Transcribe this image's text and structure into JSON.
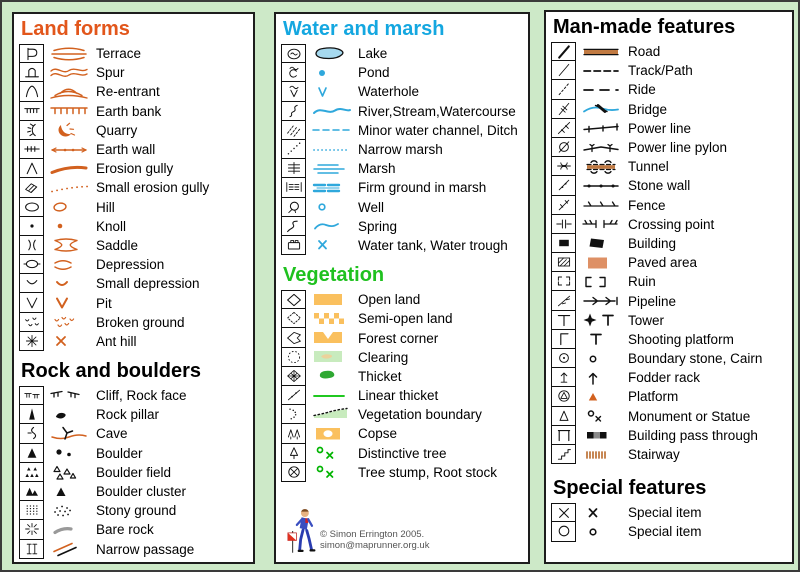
{
  "footer": {
    "copyright": "© Simon Errington 2005. simon@maprunner.org.uk"
  },
  "colors": {
    "page_bg": "#cde9c8",
    "panel_border": "#1d1d1d",
    "ink": "#111111",
    "heading_land": "#e2561b",
    "heading_water": "#14a7e0",
    "heading_veg": "#1fc11f",
    "heading_black": "#000000",
    "symbol_orange": "#d2611f",
    "symbol_blue": "#2fa8dc",
    "lake_fill": "#a6d9ef",
    "veg_yellow": "#fac05e",
    "clearing_green": "#c8ebbe",
    "clearing_blob": "#ecd29b",
    "thicket_green": "#2fa832",
    "linear_green": "#00c000",
    "tree_green": "#00b400",
    "road_brown": "#c17a42",
    "paved_brown": "#de9065",
    "bare_rock_gray": "#999999",
    "pass_gray": "#8a8a8a",
    "copyright_gray": "#555555"
  },
  "panels": [
    {
      "sections": [
        {
          "title": "Land forms",
          "title_color": "#e2561b",
          "items": [
            {
              "label": "Terrace",
              "key": "terrace"
            },
            {
              "label": "Spur",
              "key": "spur"
            },
            {
              "label": "Re-entrant",
              "key": "reentrant"
            },
            {
              "label": "Earth bank",
              "key": "earth-bank"
            },
            {
              "label": "Quarry",
              "key": "quarry"
            },
            {
              "label": "Earth wall",
              "key": "earth-wall"
            },
            {
              "label": "Erosion gully",
              "key": "erosion-gully"
            },
            {
              "label": "Small erosion gully",
              "key": "small-erosion-gully"
            },
            {
              "label": "Hill",
              "key": "hill"
            },
            {
              "label": "Knoll",
              "key": "knoll"
            },
            {
              "label": "Saddle",
              "key": "saddle"
            },
            {
              "label": "Depression",
              "key": "depression"
            },
            {
              "label": "Small depression",
              "key": "small-depression"
            },
            {
              "label": "Pit",
              "key": "pit"
            },
            {
              "label": "Broken ground",
              "key": "broken-ground"
            },
            {
              "label": "Ant hill",
              "key": "ant-hill"
            }
          ]
        },
        {
          "title": "Rock and boulders",
          "title_color": "#000000",
          "items": [
            {
              "label": "Cliff, Rock face",
              "key": "cliff"
            },
            {
              "label": "Rock pillar",
              "key": "rock-pillar"
            },
            {
              "label": "Cave",
              "key": "cave"
            },
            {
              "label": "Boulder",
              "key": "boulder"
            },
            {
              "label": "Boulder field",
              "key": "boulder-field"
            },
            {
              "label": "Boulder cluster",
              "key": "boulder-cluster"
            },
            {
              "label": "Stony ground",
              "key": "stony-ground"
            },
            {
              "label": "Bare rock",
              "key": "bare-rock"
            },
            {
              "label": "Narrow passage",
              "key": "narrow-passage"
            }
          ]
        }
      ]
    },
    {
      "sections": [
        {
          "title": "Water and marsh",
          "title_color": "#14a7e0",
          "items": [
            {
              "label": "Lake",
              "key": "lake"
            },
            {
              "label": "Pond",
              "key": "pond"
            },
            {
              "label": "Waterhole",
              "key": "waterhole"
            },
            {
              "label": "River,Stream,Watercourse",
              "key": "river"
            },
            {
              "label": "Minor water channel, Ditch",
              "key": "minor-water-channel"
            },
            {
              "label": "Narrow marsh",
              "key": "narrow-marsh"
            },
            {
              "label": "Marsh",
              "key": "marsh"
            },
            {
              "label": "Firm ground in marsh",
              "key": "firm-ground-in-marsh"
            },
            {
              "label": "Well",
              "key": "well"
            },
            {
              "label": "Spring",
              "key": "spring"
            },
            {
              "label": "Water tank, Water trough",
              "key": "water-tank"
            }
          ]
        },
        {
          "title": "Vegetation",
          "title_color": "#1fc11f",
          "items": [
            {
              "label": "Open land",
              "key": "open-land"
            },
            {
              "label": "Semi-open land",
              "key": "semi-open-land"
            },
            {
              "label": "Forest corner",
              "key": "forest-corner"
            },
            {
              "label": "Clearing",
              "key": "clearing"
            },
            {
              "label": "Thicket",
              "key": "thicket"
            },
            {
              "label": "Linear thicket",
              "key": "linear-thicket"
            },
            {
              "label": "Vegetation boundary",
              "key": "vegetation-boundary"
            },
            {
              "label": "Copse",
              "key": "copse"
            },
            {
              "label": "Distinctive tree",
              "key": "distinctive-tree"
            },
            {
              "label": "Tree stump, Root stock",
              "key": "tree-stump"
            }
          ]
        }
      ]
    },
    {
      "sections": [
        {
          "title": "Man-made features",
          "title_color": "#000000",
          "items": [
            {
              "label": "Road",
              "key": "road"
            },
            {
              "label": "Track/Path",
              "key": "track-path"
            },
            {
              "label": "Ride",
              "key": "ride"
            },
            {
              "label": "Bridge",
              "key": "bridge"
            },
            {
              "label": "Power line",
              "key": "power-line"
            },
            {
              "label": "Power line pylon",
              "key": "power-line-pylon"
            },
            {
              "label": "Tunnel",
              "key": "tunnel"
            },
            {
              "label": "Stone wall",
              "key": "stone-wall"
            },
            {
              "label": "Fence",
              "key": "fence"
            },
            {
              "label": "Crossing point",
              "key": "crossing-point"
            },
            {
              "label": "Building",
              "key": "building"
            },
            {
              "label": "Paved area",
              "key": "paved-area"
            },
            {
              "label": "Ruin",
              "key": "ruin"
            },
            {
              "label": "Pipeline",
              "key": "pipeline"
            },
            {
              "label": "Tower",
              "key": "tower"
            },
            {
              "label": "Shooting platform",
              "key": "shooting-platform"
            },
            {
              "label": "Boundary stone, Cairn",
              "key": "boundary-stone"
            },
            {
              "label": "Fodder rack",
              "key": "fodder-rack"
            },
            {
              "label": "Platform",
              "key": "platform"
            },
            {
              "label": "Monument or Statue",
              "key": "monument"
            },
            {
              "label": "Building pass through",
              "key": "building-pass-through"
            },
            {
              "label": "Stairway",
              "key": "stairway"
            }
          ]
        },
        {
          "title": "Special features",
          "title_color": "#000000",
          "items": [
            {
              "label": "Special item",
              "key": "special-x"
            },
            {
              "label": "Special item",
              "key": "special-o"
            }
          ]
        }
      ]
    }
  ]
}
